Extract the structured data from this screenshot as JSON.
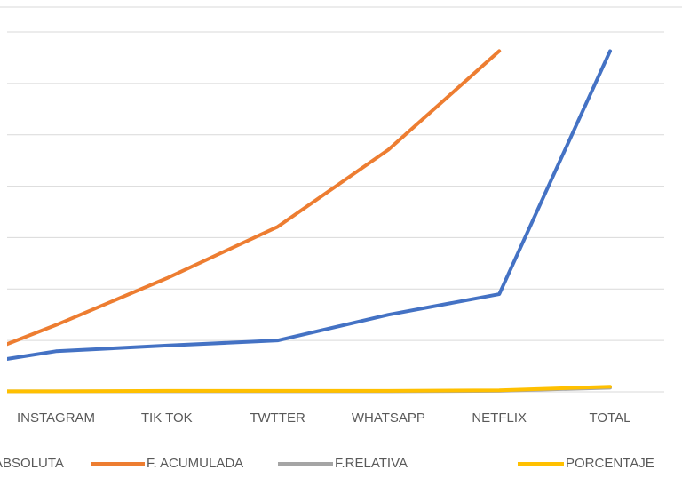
{
  "chart_data": {
    "type": "line",
    "categories": [
      null,
      "INSTAGRAM",
      "TIK TOK",
      "TWTTER",
      "WHATSAPP",
      "NETFLIX",
      "TOTAL"
    ],
    "series": [
      {
        "name": "F. ABSOLUTA",
        "color": "#4472c4",
        "values": [
          0.45,
          0.79,
          0.9,
          1.0,
          1.5,
          1.9,
          6.63
        ]
      },
      {
        "name": "F. ACUMULADA",
        "color": "#ed7d31",
        "values": [
          0.46,
          1.3,
          2.21,
          3.21,
          4.71,
          6.63,
          null
        ]
      },
      {
        "name": "F.RELATIVA",
        "color": "#a5a5a5",
        "values": [
          0.01,
          0.01,
          0.01,
          0.01,
          0.01,
          0.02,
          0.08
        ]
      },
      {
        "name": "PORCENTAJE",
        "color": "#ffc000",
        "values": [
          0.01,
          0.01,
          0.02,
          0.02,
          0.02,
          0.03,
          0.1
        ]
      }
    ],
    "ylim": [
      0,
      7
    ],
    "yticks": [
      0,
      1,
      2,
      3,
      4,
      5,
      6,
      7
    ],
    "grid": true,
    "legend": "bottom"
  }
}
